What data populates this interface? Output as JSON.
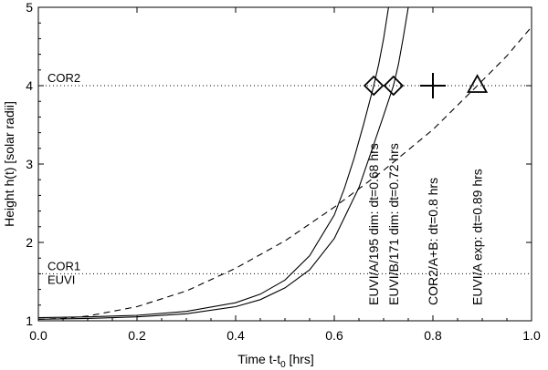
{
  "chart_data": {
    "type": "line",
    "title": "",
    "xlabel": "Time  t-t",
    "xlabel_sub": "0",
    "xlabel_units": " [hrs]",
    "ylabel": "Height  h(t) [solar radii]",
    "xlim": [
      0.0,
      1.0
    ],
    "ylim": [
      1.0,
      5.0
    ],
    "x_ticks": [
      0.0,
      0.2,
      0.4,
      0.6,
      0.8,
      1.0
    ],
    "x_tick_labels": [
      "0.0",
      "0.2",
      "0.4",
      "0.6",
      "0.8",
      "1.0"
    ],
    "y_ticks": [
      1,
      2,
      3,
      4,
      5
    ],
    "y_tick_labels": [
      "1",
      "2",
      "3",
      "4",
      "5"
    ],
    "grid": false,
    "reference_lines": [
      {
        "label": "COR2",
        "y": 4.0,
        "style": "dotted"
      },
      {
        "label": "COR1",
        "y": 1.6,
        "style": "dotted"
      },
      {
        "label": "EUVI",
        "y": 1.6,
        "style": "dotted"
      }
    ],
    "series": [
      {
        "style": "solid",
        "x": [
          0.0,
          0.1,
          0.2,
          0.3,
          0.4,
          0.45,
          0.5,
          0.55,
          0.6,
          0.62,
          0.64,
          0.66,
          0.68,
          0.69,
          0.7,
          0.71
        ],
        "y": [
          1.04,
          1.05,
          1.07,
          1.12,
          1.23,
          1.34,
          1.52,
          1.83,
          2.35,
          2.68,
          3.07,
          3.52,
          4.0,
          4.27,
          4.6,
          5.0
        ]
      },
      {
        "style": "solid",
        "x": [
          0.0,
          0.1,
          0.2,
          0.3,
          0.4,
          0.45,
          0.5,
          0.55,
          0.6,
          0.65,
          0.68,
          0.7,
          0.72,
          0.73,
          0.74,
          0.75
        ],
        "y": [
          1.02,
          1.03,
          1.05,
          1.09,
          1.18,
          1.27,
          1.42,
          1.65,
          2.05,
          2.7,
          3.25,
          3.62,
          4.0,
          4.27,
          4.62,
          5.0
        ]
      },
      {
        "style": "dashed",
        "x": [
          0.0,
          0.05,
          0.1,
          0.2,
          0.3,
          0.4,
          0.5,
          0.6,
          0.7,
          0.8,
          0.89,
          0.95,
          1.0
        ],
        "y": [
          1.02,
          1.03,
          1.06,
          1.18,
          1.38,
          1.67,
          2.02,
          2.45,
          2.92,
          3.44,
          4.0,
          4.38,
          4.75
        ]
      }
    ],
    "markers": [
      {
        "symbol": "diamond",
        "x": 0.68,
        "y": 4.0
      },
      {
        "symbol": "diamond",
        "x": 0.72,
        "y": 4.0
      },
      {
        "symbol": "plus",
        "x": 0.8,
        "y": 4.0
      },
      {
        "symbol": "triangle",
        "x": 0.89,
        "y": 4.0
      }
    ],
    "annotations": [
      {
        "text": "EUVI/A/195 dim: dt=0.68 hrs",
        "x": 0.68
      },
      {
        "text": "EUVI/B/171 dim: dt=0.72 hrs",
        "x": 0.72
      },
      {
        "text": "COR2/A+B: dt=0.8 hrs",
        "x": 0.8
      },
      {
        "text": "EUVI/A exp: dt=0.89 hrs",
        "x": 0.89
      }
    ]
  }
}
